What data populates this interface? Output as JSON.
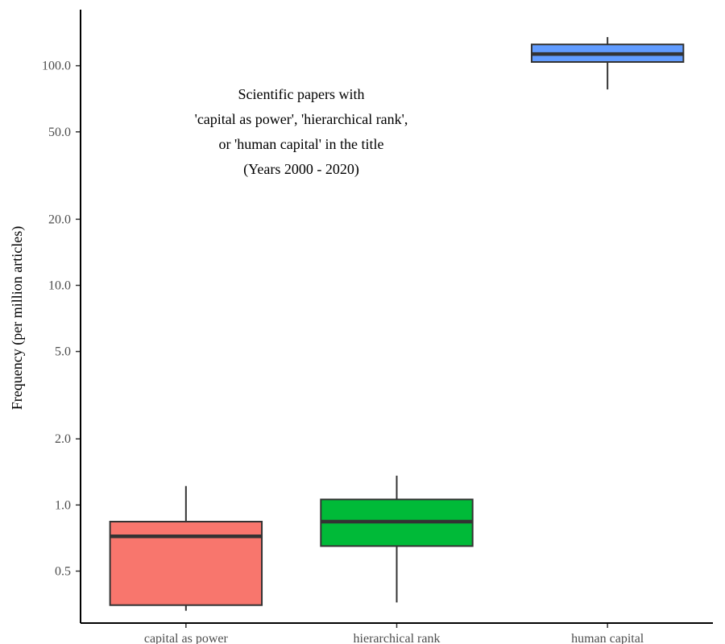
{
  "chart_data": {
    "type": "box",
    "ylabel": "Frequency (per million articles)",
    "xlabel": "",
    "y_scale": "log10",
    "ylim": [
      0.29,
      180
    ],
    "y_ticks": [
      0.5,
      1.0,
      2.0,
      5.0,
      10.0,
      20.0,
      50.0,
      100.0
    ],
    "y_tick_labels": [
      "0.5",
      "1.0",
      "2.0",
      "5.0",
      "10.0",
      "20.0",
      "50.0",
      "100.0"
    ],
    "grid": false,
    "legend": "none",
    "annotation": [
      "Scientific papers with",
      "'capital as power', 'hierarchical rank',",
      "or 'human capital' in the title",
      "(Years 2000 - 2020)"
    ],
    "categories": [
      "capital as power",
      "hierarchical rank",
      "human capital"
    ],
    "boxes": [
      {
        "category": "capital as power",
        "min": 0.33,
        "q1": 0.35,
        "median": 0.72,
        "q3": 0.84,
        "max": 1.22,
        "color": "#F8766D"
      },
      {
        "category": "hierarchical rank",
        "min": 0.36,
        "q1": 0.65,
        "median": 0.84,
        "q3": 1.06,
        "max": 1.36,
        "color": "#00BA38"
      },
      {
        "category": "human capital",
        "min": 78,
        "q1": 104,
        "median": 113,
        "q3": 125,
        "max": 135,
        "color": "#619CFF"
      }
    ]
  }
}
